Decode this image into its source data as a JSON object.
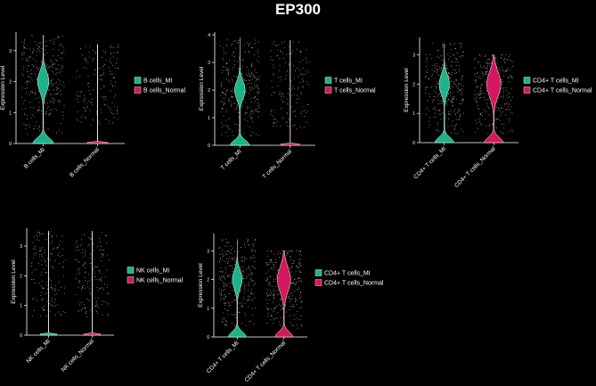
{
  "title": "EP300",
  "colors": {
    "mi": "#1cb388",
    "normal": "#d4185f",
    "axis": "#ffffff",
    "dots": "#bdbdbd"
  },
  "chart_data": [
    {
      "type": "violin",
      "ylabel": "Expression Level",
      "ylim": [
        0,
        3.6
      ],
      "yticks": [
        0,
        1,
        2,
        3
      ],
      "categories": [
        "B cells_MI",
        "B cells_Normal"
      ],
      "legend": [
        "B cells_MI",
        "B cells_Normal"
      ],
      "series": [
        {
          "name": "B cells_MI",
          "color_key": "mi",
          "max": 3.5,
          "mode": 2.0,
          "shape": "bimodal"
        },
        {
          "name": "B cells_Normal",
          "color_key": "normal",
          "max": 3.2,
          "mode": 0.0,
          "shape": "flat"
        }
      ]
    },
    {
      "type": "violin",
      "ylabel": "Expression Level",
      "ylim": [
        0,
        4.1
      ],
      "yticks": [
        0,
        1,
        2,
        3,
        4
      ],
      "categories": [
        "T cells_MI",
        "T cells_Normal"
      ],
      "legend": [
        "T cells_MI",
        "T cells_Normal"
      ],
      "series": [
        {
          "name": "T cells_MI",
          "color_key": "mi",
          "max": 3.9,
          "mode": 2.0,
          "shape": "bimodal"
        },
        {
          "name": "T cells_Normal",
          "color_key": "normal",
          "max": 3.8,
          "mode": 0.0,
          "shape": "flat"
        }
      ]
    },
    {
      "type": "violin",
      "ylabel": "Expression Level",
      "ylim": [
        0,
        3.6
      ],
      "yticks": [
        0,
        1,
        2,
        3
      ],
      "categories": [
        "CD4+ T cells_MI",
        "CD4+ T cells_Normal"
      ],
      "legend": [
        "CD4+ T cells_MI",
        "CD4+ T cells_Normal"
      ],
      "series": [
        {
          "name": "CD4+ T cells_MI",
          "color_key": "mi",
          "max": 3.4,
          "mode": 2.0,
          "shape": "bimodal"
        },
        {
          "name": "CD4+ T cells_Normal",
          "color_key": "normal",
          "max": 3.0,
          "mode": 2.0,
          "shape": "bimodal-wide"
        }
      ]
    },
    {
      "type": "violin",
      "ylabel": "Expression Level",
      "ylim": [
        0,
        3.6
      ],
      "yticks": [
        0,
        1,
        2,
        3
      ],
      "categories": [
        "NK cells_MI",
        "NK cells_Normal"
      ],
      "legend": [
        "NK cells_MI",
        "NK cells_Normal"
      ],
      "series": [
        {
          "name": "NK cells_MI",
          "color_key": "mi",
          "max": 3.5,
          "mode": 0.0,
          "shape": "flat"
        },
        {
          "name": "NK cells_Normal",
          "color_key": "normal",
          "max": 3.5,
          "mode": 0.0,
          "shape": "flat"
        }
      ]
    },
    {
      "type": "violin",
      "ylabel": "Expression Level",
      "ylim": [
        0,
        3.6
      ],
      "yticks": [
        0,
        1,
        2,
        3
      ],
      "categories": [
        "CD4+ T cells_MI",
        "CD4+ T cells_Normal"
      ],
      "legend": [
        "CD4+ T cells_MI",
        "CD4+ T cells_Normal"
      ],
      "series": [
        {
          "name": "CD4+ T cells_MI",
          "color_key": "mi",
          "max": 3.4,
          "mode": 2.0,
          "shape": "bimodal"
        },
        {
          "name": "CD4+ T cells_Normal",
          "color_key": "normal",
          "max": 3.0,
          "mode": 2.0,
          "shape": "bimodal-wide"
        }
      ]
    }
  ]
}
